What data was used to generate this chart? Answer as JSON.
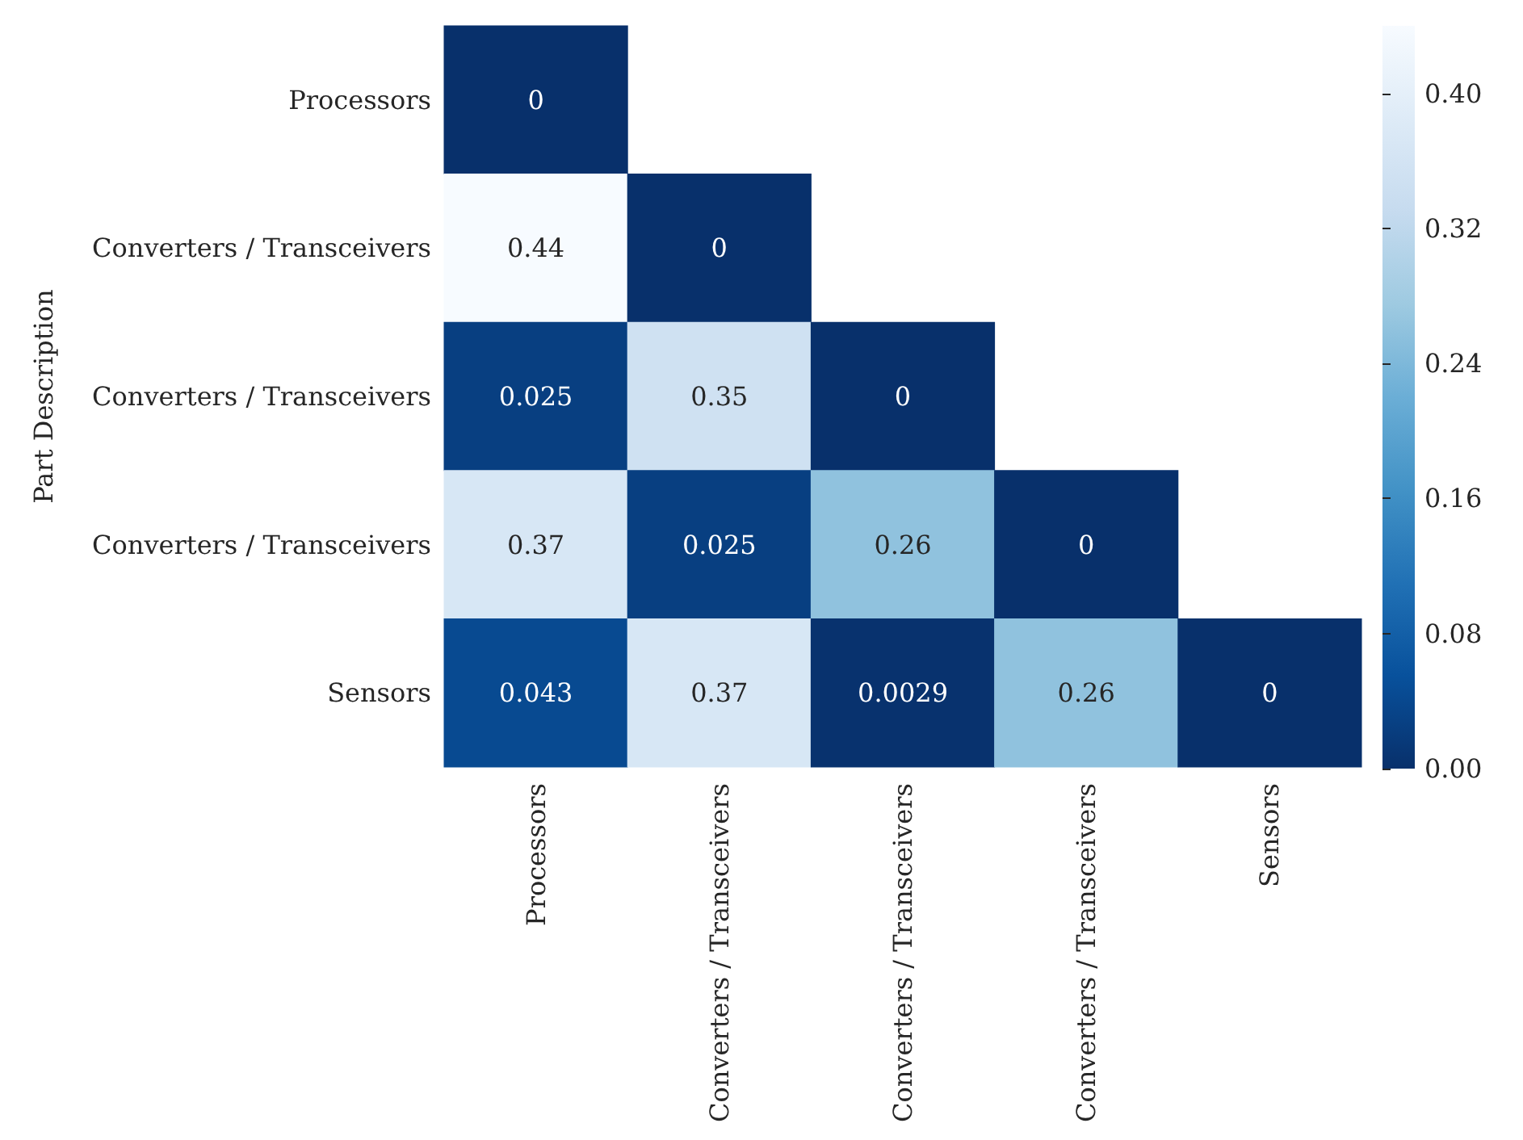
{
  "chart_data": {
    "type": "heatmap",
    "ylabel": "Part Description",
    "categories": [
      "Processors",
      "Converters / Transceivers",
      "Converters / Transceivers",
      "Converters / Transceivers",
      "Sensors"
    ],
    "y_categories": [
      "Processors",
      "Converters / Transceivers",
      "Converters / Transceivers",
      "Converters / Transceivers",
      "Sensors"
    ],
    "cells": [
      [
        0,
        null,
        null,
        null,
        null
      ],
      [
        0.44,
        0,
        null,
        null,
        null
      ],
      [
        0.025,
        0.35,
        0,
        null,
        null
      ],
      [
        0.37,
        0.025,
        0.26,
        0,
        null
      ],
      [
        0.043,
        0.37,
        0.0029,
        0.26,
        0
      ]
    ],
    "data_labels": true,
    "clim": [
      0,
      0.44
    ],
    "cticks": [
      {
        "value": 0,
        "label": "0.00"
      },
      {
        "value": 0.08,
        "label": "0.08"
      },
      {
        "value": 0.16,
        "label": "0.16"
      },
      {
        "value": 0.24,
        "label": "0.24"
      },
      {
        "value": 0.32,
        "label": "0.32"
      },
      {
        "value": 0.4,
        "label": "0.40"
      }
    ]
  }
}
